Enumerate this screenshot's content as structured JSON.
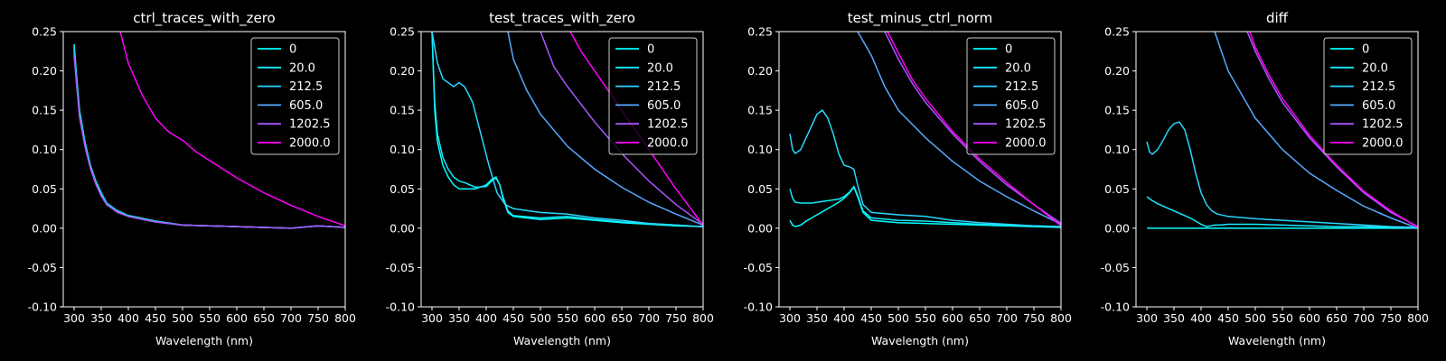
{
  "x_label": "Wavelength (nm)",
  "legend": [
    "0",
    "20.0",
    "212.5",
    "605.0",
    "1202.5",
    "2000.0"
  ],
  "colors": [
    "#00ffff",
    "#14ebff",
    "#2ad5ff",
    "#55aaff",
    "#aa55ff",
    "#ff00ff"
  ],
  "chart_data": [
    {
      "type": "line",
      "title": "ctrl_traces_with_zero",
      "xlabel": "Wavelength (nm)",
      "xlim": [
        280,
        800
      ],
      "ylim": [
        -0.1,
        0.25
      ],
      "xticks": [
        300,
        350,
        400,
        450,
        500,
        550,
        600,
        650,
        700,
        750,
        800
      ],
      "yticks": [
        -0.1,
        -0.05,
        0.0,
        0.05,
        0.1,
        0.15,
        0.2,
        0.25
      ],
      "legend_loc": "upper right",
      "series": [
        {
          "name": "0",
          "x": [
            300,
            305,
            310,
            320,
            330,
            340,
            350,
            360,
            380,
            400,
            450,
            500,
            550,
            600,
            650,
            700,
            750,
            800
          ],
          "y": [
            0.234,
            0.19,
            0.15,
            0.11,
            0.08,
            0.06,
            0.045,
            0.032,
            0.022,
            0.016,
            0.009,
            0.004,
            0.003,
            0.002,
            0.001,
            0.0,
            0.003,
            0.001
          ]
        },
        {
          "name": "20.0",
          "x": [
            300,
            305,
            310,
            320,
            330,
            340,
            350,
            360,
            380,
            400,
            450,
            500,
            550,
            600,
            650,
            700,
            750,
            800
          ],
          "y": [
            0.23,
            0.186,
            0.147,
            0.108,
            0.079,
            0.059,
            0.044,
            0.031,
            0.022,
            0.016,
            0.009,
            0.004,
            0.003,
            0.002,
            0.001,
            0.0,
            0.003,
            0.001
          ]
        },
        {
          "name": "212.5",
          "x": [
            300,
            305,
            310,
            320,
            330,
            340,
            350,
            360,
            380,
            400,
            450,
            500,
            550,
            600,
            650,
            700,
            750,
            800
          ],
          "y": [
            0.226,
            0.184,
            0.145,
            0.106,
            0.078,
            0.058,
            0.043,
            0.031,
            0.021,
            0.015,
            0.008,
            0.004,
            0.003,
            0.002,
            0.001,
            0.0,
            0.003,
            0.001
          ]
        },
        {
          "name": "605.0",
          "x": [
            300,
            305,
            310,
            320,
            330,
            340,
            350,
            360,
            380,
            400,
            450,
            500,
            550,
            600,
            650,
            700,
            750,
            800
          ],
          "y": [
            0.222,
            0.182,
            0.143,
            0.105,
            0.077,
            0.057,
            0.042,
            0.03,
            0.021,
            0.015,
            0.008,
            0.004,
            0.003,
            0.002,
            0.001,
            0.0,
            0.003,
            0.001
          ]
        },
        {
          "name": "1202.5",
          "x": [
            300,
            305,
            310,
            320,
            330,
            340,
            350,
            360,
            380,
            400,
            450,
            500,
            550,
            600,
            650,
            700,
            750,
            800
          ],
          "y": [
            0.218,
            0.18,
            0.141,
            0.104,
            0.076,
            0.056,
            0.041,
            0.03,
            0.02,
            0.015,
            0.008,
            0.004,
            0.003,
            0.002,
            0.001,
            0.0,
            0.003,
            0.001
          ]
        },
        {
          "name": "2000.0",
          "x": [
            385,
            400,
            425,
            450,
            475,
            500,
            525,
            550,
            575,
            600,
            650,
            700,
            750,
            800
          ],
          "y": [
            0.25,
            0.21,
            0.17,
            0.14,
            0.122,
            0.112,
            0.097,
            0.086,
            0.075,
            0.064,
            0.045,
            0.029,
            0.015,
            0.003
          ]
        }
      ]
    },
    {
      "type": "line",
      "title": "test_traces_with_zero",
      "xlabel": "Wavelength (nm)",
      "xlim": [
        280,
        800
      ],
      "ylim": [
        -0.1,
        0.25
      ],
      "xticks": [
        300,
        350,
        400,
        450,
        500,
        550,
        600,
        650,
        700,
        750,
        800
      ],
      "yticks": [
        -0.1,
        -0.05,
        0.0,
        0.05,
        0.1,
        0.15,
        0.2,
        0.25
      ],
      "legend_loc": "upper right",
      "series": [
        {
          "name": "0",
          "x": [
            300,
            305,
            310,
            320,
            330,
            340,
            350,
            360,
            380,
            400,
            410,
            418,
            425,
            430,
            440,
            450,
            500,
            550,
            600,
            650,
            700,
            750,
            800
          ],
          "y": [
            0.25,
            0.15,
            0.11,
            0.08,
            0.065,
            0.055,
            0.05,
            0.05,
            0.05,
            0.055,
            0.062,
            0.065,
            0.055,
            0.04,
            0.02,
            0.015,
            0.011,
            0.013,
            0.01,
            0.007,
            0.005,
            0.003,
            0.002
          ]
        },
        {
          "name": "20.0",
          "x": [
            300,
            305,
            310,
            320,
            330,
            340,
            350,
            360,
            380,
            400,
            410,
            418,
            425,
            430,
            440,
            450,
            500,
            550,
            600,
            650,
            700,
            750,
            800
          ],
          "y": [
            0.25,
            0.16,
            0.12,
            0.09,
            0.075,
            0.065,
            0.06,
            0.058,
            0.052,
            0.053,
            0.06,
            0.064,
            0.055,
            0.042,
            0.022,
            0.016,
            0.013,
            0.015,
            0.011,
            0.008,
            0.006,
            0.004,
            0.002
          ]
        },
        {
          "name": "212.5",
          "x": [
            300,
            305,
            310,
            320,
            330,
            340,
            350,
            360,
            375,
            390,
            405,
            420,
            435,
            450,
            480,
            500,
            550,
            600,
            650,
            700,
            750,
            800
          ],
          "y": [
            0.25,
            0.23,
            0.21,
            0.19,
            0.185,
            0.18,
            0.185,
            0.18,
            0.16,
            0.12,
            0.08,
            0.045,
            0.03,
            0.025,
            0.022,
            0.02,
            0.018,
            0.013,
            0.01,
            0.006,
            0.004,
            0.002
          ]
        },
        {
          "name": "605.0",
          "x": [
            440,
            450,
            475,
            500,
            550,
            600,
            650,
            700,
            750,
            800
          ],
          "y": [
            0.25,
            0.215,
            0.175,
            0.145,
            0.104,
            0.075,
            0.052,
            0.033,
            0.018,
            0.004
          ]
        },
        {
          "name": "1202.5",
          "x": [
            500,
            525,
            550,
            600,
            650,
            700,
            750,
            800
          ],
          "y": [
            0.25,
            0.205,
            0.18,
            0.135,
            0.095,
            0.06,
            0.03,
            0.005
          ]
        },
        {
          "name": "2000.0",
          "x": [
            555,
            575,
            600,
            650,
            700,
            750,
            800
          ],
          "y": [
            0.25,
            0.225,
            0.2,
            0.15,
            0.1,
            0.05,
            0.004
          ]
        }
      ]
    },
    {
      "type": "line",
      "title": "test_minus_ctrl_norm",
      "xlabel": "Wavelength (nm)",
      "xlim": [
        280,
        800
      ],
      "ylim": [
        -0.1,
        0.25
      ],
      "xticks": [
        300,
        350,
        400,
        450,
        500,
        550,
        600,
        650,
        700,
        750,
        800
      ],
      "yticks": [
        -0.1,
        -0.05,
        0.0,
        0.05,
        0.1,
        0.15,
        0.2,
        0.25
      ],
      "legend_loc": "upper right",
      "series": [
        {
          "name": "0",
          "x": [
            300,
            305,
            310,
            320,
            330,
            340,
            350,
            360,
            370,
            380,
            390,
            400,
            410,
            418,
            425,
            435,
            450,
            500,
            550,
            600,
            650,
            700,
            750,
            800
          ],
          "y": [
            0.01,
            0.004,
            0.002,
            0.004,
            0.009,
            0.013,
            0.017,
            0.021,
            0.025,
            0.029,
            0.033,
            0.038,
            0.045,
            0.052,
            0.04,
            0.02,
            0.01,
            0.007,
            0.006,
            0.005,
            0.004,
            0.003,
            0.002,
            0.001
          ]
        },
        {
          "name": "20.0",
          "x": [
            300,
            305,
            310,
            320,
            330,
            340,
            350,
            360,
            370,
            380,
            390,
            400,
            410,
            418,
            425,
            435,
            450,
            500,
            550,
            600,
            650,
            700,
            750,
            800
          ],
          "y": [
            0.05,
            0.038,
            0.033,
            0.032,
            0.032,
            0.032,
            0.033,
            0.034,
            0.035,
            0.036,
            0.037,
            0.04,
            0.046,
            0.053,
            0.042,
            0.022,
            0.013,
            0.01,
            0.009,
            0.007,
            0.005,
            0.004,
            0.003,
            0.002
          ]
        },
        {
          "name": "212.5",
          "x": [
            300,
            305,
            310,
            320,
            330,
            340,
            350,
            360,
            370,
            380,
            390,
            400,
            410,
            418,
            425,
            435,
            450,
            500,
            550,
            600,
            650,
            700,
            750,
            800
          ],
          "y": [
            0.12,
            0.1,
            0.095,
            0.1,
            0.115,
            0.13,
            0.145,
            0.15,
            0.14,
            0.12,
            0.095,
            0.08,
            0.078,
            0.075,
            0.055,
            0.03,
            0.02,
            0.017,
            0.015,
            0.01,
            0.007,
            0.005,
            0.003,
            0.002
          ]
        },
        {
          "name": "605.0",
          "x": [
            425,
            450,
            475,
            500,
            550,
            600,
            650,
            700,
            750,
            800
          ],
          "y": [
            0.25,
            0.22,
            0.18,
            0.15,
            0.115,
            0.085,
            0.06,
            0.04,
            0.022,
            0.005
          ]
        },
        {
          "name": "1202.5",
          "x": [
            475,
            500,
            525,
            550,
            600,
            650,
            700,
            750,
            800
          ],
          "y": [
            0.25,
            0.215,
            0.185,
            0.16,
            0.12,
            0.085,
            0.055,
            0.03,
            0.006
          ]
        },
        {
          "name": "2000.0",
          "x": [
            480,
            500,
            525,
            550,
            600,
            650,
            700,
            750,
            800
          ],
          "y": [
            0.25,
            0.223,
            0.19,
            0.165,
            0.123,
            0.088,
            0.058,
            0.03,
            0.003
          ]
        }
      ]
    },
    {
      "type": "line",
      "title": "diff",
      "xlabel": "Wavelength (nm)",
      "xlim": [
        280,
        800
      ],
      "ylim": [
        -0.1,
        0.25
      ],
      "xticks": [
        300,
        350,
        400,
        450,
        500,
        550,
        600,
        650,
        700,
        750,
        800
      ],
      "yticks": [
        -0.1,
        -0.05,
        0.0,
        0.05,
        0.1,
        0.15,
        0.2,
        0.25
      ],
      "legend_loc": "upper right",
      "series": [
        {
          "name": "0",
          "x": [
            300,
            800
          ],
          "y": [
            0.0,
            0.0
          ]
        },
        {
          "name": "20.0",
          "x": [
            300,
            310,
            320,
            340,
            360,
            380,
            400,
            410,
            418,
            425,
            435,
            450,
            500,
            550,
            600,
            650,
            700,
            750,
            800
          ],
          "y": [
            0.04,
            0.035,
            0.031,
            0.025,
            0.019,
            0.013,
            0.005,
            0.002,
            0.003,
            0.004,
            0.004,
            0.005,
            0.005,
            0.004,
            0.003,
            0.002,
            0.002,
            0.001,
            0.0
          ]
        },
        {
          "name": "212.5",
          "x": [
            300,
            305,
            310,
            320,
            330,
            340,
            350,
            360,
            370,
            380,
            390,
            400,
            410,
            420,
            430,
            450,
            500,
            550,
            600,
            650,
            700,
            750,
            800
          ],
          "y": [
            0.11,
            0.097,
            0.094,
            0.1,
            0.112,
            0.125,
            0.133,
            0.135,
            0.125,
            0.1,
            0.07,
            0.045,
            0.03,
            0.022,
            0.018,
            0.015,
            0.012,
            0.01,
            0.008,
            0.006,
            0.004,
            0.002,
            0.001
          ]
        },
        {
          "name": "605.0",
          "x": [
            425,
            450,
            475,
            500,
            550,
            600,
            650,
            700,
            750,
            800
          ],
          "y": [
            0.25,
            0.2,
            0.17,
            0.14,
            0.1,
            0.07,
            0.048,
            0.028,
            0.013,
            0.0
          ]
        },
        {
          "name": "1202.5",
          "x": [
            485,
            500,
            525,
            550,
            600,
            650,
            700,
            750,
            800
          ],
          "y": [
            0.25,
            0.225,
            0.19,
            0.16,
            0.115,
            0.078,
            0.045,
            0.02,
            0.002
          ]
        },
        {
          "name": "2000.0",
          "x": [
            490,
            500,
            525,
            550,
            600,
            650,
            700,
            750,
            800
          ],
          "y": [
            0.25,
            0.23,
            0.195,
            0.165,
            0.118,
            0.08,
            0.047,
            0.022,
            0.001
          ]
        }
      ]
    }
  ]
}
